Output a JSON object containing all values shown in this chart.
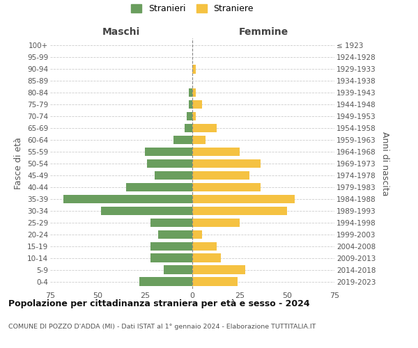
{
  "age_groups": [
    "0-4",
    "5-9",
    "10-14",
    "15-19",
    "20-24",
    "25-29",
    "30-34",
    "35-39",
    "40-44",
    "45-49",
    "50-54",
    "55-59",
    "60-64",
    "65-69",
    "70-74",
    "75-79",
    "80-84",
    "85-89",
    "90-94",
    "95-99",
    "100+"
  ],
  "birth_years": [
    "2019-2023",
    "2014-2018",
    "2009-2013",
    "2004-2008",
    "1999-2003",
    "1994-1998",
    "1989-1993",
    "1984-1988",
    "1979-1983",
    "1974-1978",
    "1969-1973",
    "1964-1968",
    "1959-1963",
    "1954-1958",
    "1949-1953",
    "1944-1948",
    "1939-1943",
    "1934-1938",
    "1929-1933",
    "1924-1928",
    "≤ 1923"
  ],
  "maschi": [
    28,
    15,
    22,
    22,
    18,
    22,
    48,
    68,
    35,
    20,
    24,
    25,
    10,
    4,
    3,
    2,
    2,
    0,
    0,
    0,
    0
  ],
  "femmine": [
    24,
    28,
    15,
    13,
    5,
    25,
    50,
    54,
    36,
    30,
    36,
    25,
    7,
    13,
    2,
    5,
    2,
    0,
    2,
    0,
    0
  ],
  "maschi_color": "#6a9e5e",
  "femmine_color": "#f5c242",
  "title": "Popolazione per cittadinanza straniera per età e sesso - 2024",
  "subtitle": "COMUNE DI POZZO D'ADDA (MI) - Dati ISTAT al 1° gennaio 2024 - Elaborazione TUTTITALIA.IT",
  "xlabel_left": "Maschi",
  "xlabel_right": "Femmine",
  "ylabel_left": "Fasce di età",
  "ylabel_right": "Anni di nascita",
  "legend_maschi": "Stranieri",
  "legend_femmine": "Straniere",
  "xlim": 75,
  "background_color": "#ffffff",
  "grid_color": "#cccccc",
  "bar_height": 0.75
}
